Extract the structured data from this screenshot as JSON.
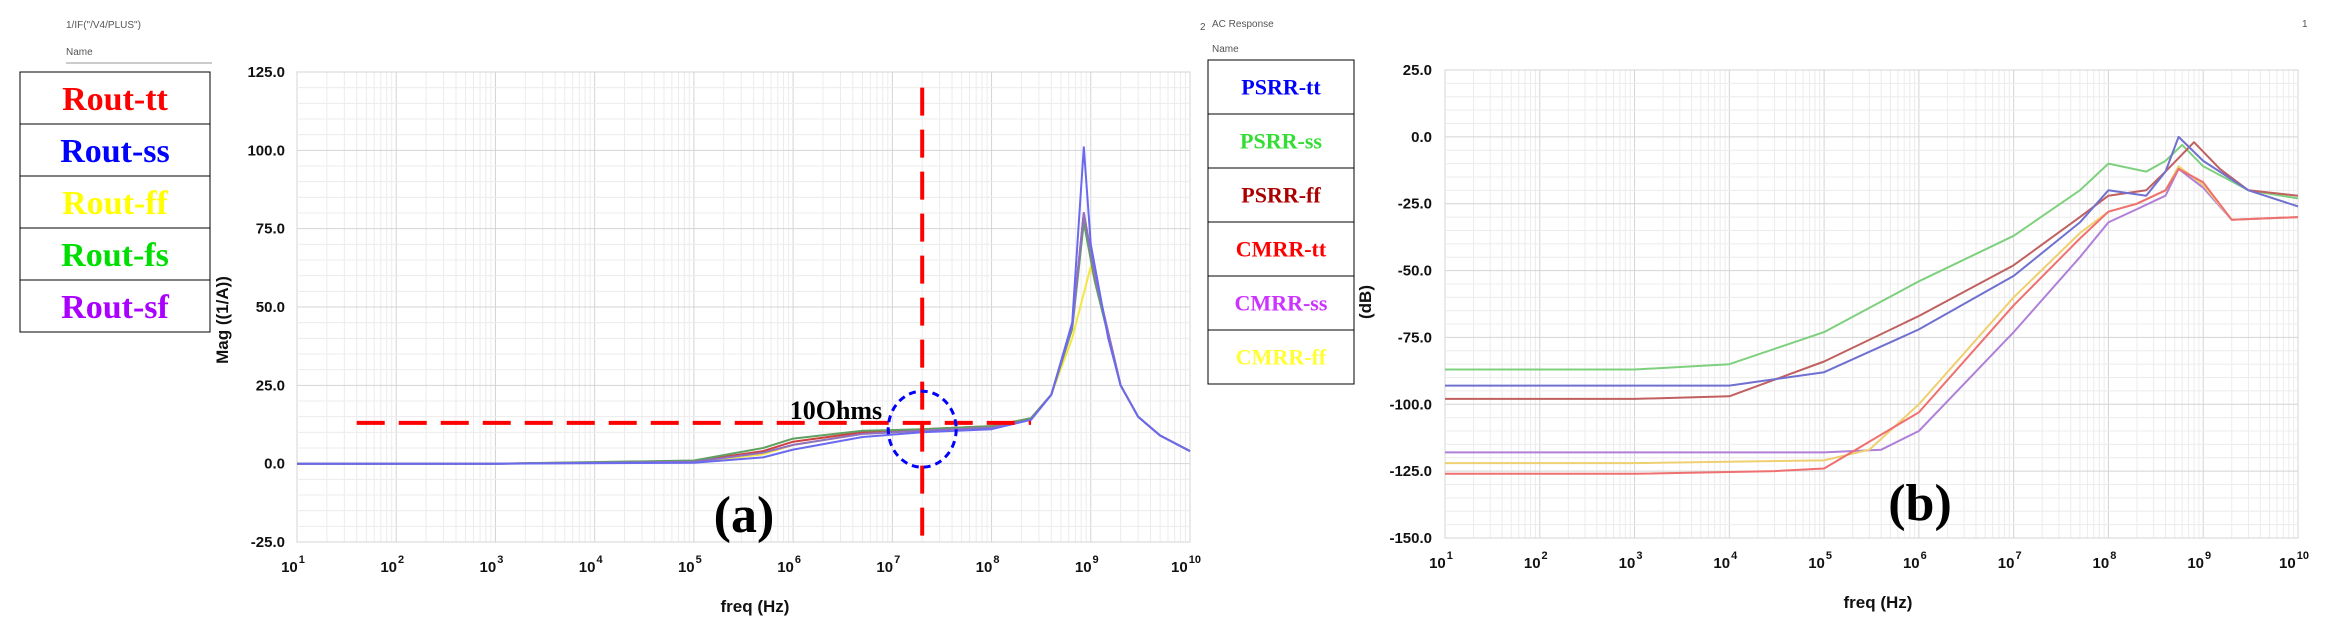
{
  "chart_data": [
    {
      "type": "line",
      "window_title": "1/IF(\"/V4/PLUS\")",
      "window_sub": "Name",
      "panel_label": "(a)",
      "xlabel": "freq (Hz)",
      "ylabel": "Mag ((1/A))",
      "x_scale": "log",
      "xlim": [
        10,
        10000000000
      ],
      "ylim": [
        -25,
        125
      ],
      "y_ticks": [
        "125.0",
        "100.0",
        "75.0",
        "50.0",
        "25.0",
        "0.0",
        "-25.0"
      ],
      "x_ticks": [
        {
          "base": "10",
          "exp": "1"
        },
        {
          "base": "10",
          "exp": "2"
        },
        {
          "base": "10",
          "exp": "3"
        },
        {
          "base": "10",
          "exp": "4"
        },
        {
          "base": "10",
          "exp": "5"
        },
        {
          "base": "10",
          "exp": "6"
        },
        {
          "base": "10",
          "exp": "7"
        },
        {
          "base": "10",
          "exp": "8"
        },
        {
          "base": "10",
          "exp": "9"
        },
        {
          "base": "10",
          "exp": "10"
        }
      ],
      "grid": true,
      "legend_position": "left-outside",
      "legend": [
        {
          "label": "Rout-tt",
          "color": "#ff0000"
        },
        {
          "label": "Rout-ss",
          "color": "#0000ff"
        },
        {
          "label": "Rout-ff",
          "color": "#ffff00"
        },
        {
          "label": "Rout-fs",
          "color": "#00dd00"
        },
        {
          "label": "Rout-sf",
          "color": "#aa00ff"
        }
      ],
      "annotation_text": "10Ohms",
      "annotation_color": "#ff0000",
      "circle_color": "#0000ff",
      "guide_h_y": 13,
      "guide_h_x": [
        40,
        250000000
      ],
      "guide_v_x": 20000000,
      "guide_v_y": [
        -25,
        120
      ],
      "circle_center": {
        "x": 20000000,
        "y": 11
      },
      "series": [
        {
          "name": "Rout-ff",
          "color": "#f5e642",
          "points": [
            [
              10,
              0
            ],
            [
              1000,
              0
            ],
            [
              100000,
              0.5
            ],
            [
              500000,
              3
            ],
            [
              1000000,
              6
            ],
            [
              5000000,
              9.5
            ],
            [
              20000000,
              10.5
            ],
            [
              100000000,
              11.5
            ],
            [
              250000000,
              14
            ],
            [
              400000000,
              22
            ],
            [
              650000000,
              40
            ],
            [
              1000000000,
              63
            ],
            [
              1300000000,
              50
            ],
            [
              2000000000,
              25
            ],
            [
              3000000000,
              15
            ],
            [
              5000000000,
              9
            ],
            [
              10000000000,
              4
            ]
          ]
        },
        {
          "name": "Rout-tt",
          "color": "#d04040",
          "points": [
            [
              10,
              0
            ],
            [
              1000,
              0
            ],
            [
              100000,
              0.8
            ],
            [
              500000,
              4
            ],
            [
              1000000,
              7
            ],
            [
              5000000,
              10
            ],
            [
              20000000,
              11
            ],
            [
              100000000,
              12
            ],
            [
              250000000,
              14.5
            ],
            [
              400000000,
              22
            ],
            [
              650000000,
              44
            ],
            [
              850000000,
              80
            ],
            [
              1100000000,
              60
            ],
            [
              2000000000,
              25
            ],
            [
              3000000000,
              15
            ],
            [
              5000000000,
              9
            ],
            [
              10000000000,
              4
            ]
          ]
        },
        {
          "name": "Rout-fs",
          "color": "#60a060",
          "points": [
            [
              10,
              0
            ],
            [
              1000,
              0
            ],
            [
              100000,
              1
            ],
            [
              500000,
              5
            ],
            [
              1000000,
              8
            ],
            [
              5000000,
              10.5
            ],
            [
              20000000,
              11
            ],
            [
              100000000,
              12
            ],
            [
              250000000,
              14.5
            ],
            [
              400000000,
              22
            ],
            [
              650000000,
              43
            ],
            [
              850000000,
              77
            ],
            [
              1100000000,
              58
            ],
            [
              2000000000,
              25
            ],
            [
              3000000000,
              15
            ],
            [
              5000000000,
              9
            ],
            [
              10000000000,
              4
            ]
          ]
        },
        {
          "name": "Rout-sf",
          "color": "#9070c0",
          "points": [
            [
              10,
              0
            ],
            [
              1000,
              0
            ],
            [
              100000,
              0.6
            ],
            [
              500000,
              3.5
            ],
            [
              1000000,
              6
            ],
            [
              5000000,
              9.5
            ],
            [
              20000000,
              10.5
            ],
            [
              100000000,
              11.5
            ],
            [
              250000000,
              14
            ],
            [
              400000000,
              22
            ],
            [
              650000000,
              44
            ],
            [
              850000000,
              80
            ],
            [
              1100000000,
              60
            ],
            [
              2000000000,
              25
            ],
            [
              3000000000,
              15
            ],
            [
              5000000000,
              9
            ],
            [
              10000000000,
              4
            ]
          ]
        },
        {
          "name": "Rout-ss",
          "color": "#6a6af0",
          "points": [
            [
              10,
              0
            ],
            [
              1000,
              0
            ],
            [
              100000,
              0.3
            ],
            [
              500000,
              2
            ],
            [
              1000000,
              4.5
            ],
            [
              5000000,
              8.5
            ],
            [
              20000000,
              10
            ],
            [
              100000000,
              11
            ],
            [
              250000000,
              14
            ],
            [
              400000000,
              22
            ],
            [
              650000000,
              45
            ],
            [
              850000000,
              101
            ],
            [
              1000000000,
              70
            ],
            [
              1500000000,
              40
            ],
            [
              2000000000,
              25
            ],
            [
              3000000000,
              15
            ],
            [
              5000000000,
              9
            ],
            [
              10000000000,
              4
            ]
          ]
        }
      ]
    },
    {
      "type": "line",
      "window_title": "AC Response",
      "window_sub": "Name",
      "window_right": "1",
      "window_index": "2",
      "panel_label": "(b)",
      "xlabel": "freq (Hz)",
      "ylabel": "(dB)",
      "x_scale": "log",
      "xlim": [
        10,
        10000000000
      ],
      "ylim": [
        -150,
        25
      ],
      "y_ticks": [
        "25.0",
        "0.0",
        "-25.0",
        "-50.0",
        "-75.0",
        "-100.0",
        "-125.0",
        "-150.0"
      ],
      "x_ticks": [
        {
          "base": "10",
          "exp": "1"
        },
        {
          "base": "10",
          "exp": "2"
        },
        {
          "base": "10",
          "exp": "3"
        },
        {
          "base": "10",
          "exp": "4"
        },
        {
          "base": "10",
          "exp": "5"
        },
        {
          "base": "10",
          "exp": "6"
        },
        {
          "base": "10",
          "exp": "7"
        },
        {
          "base": "10",
          "exp": "8"
        },
        {
          "base": "10",
          "exp": "9"
        },
        {
          "base": "10",
          "exp": "10"
        }
      ],
      "grid": true,
      "legend_position": "top-left",
      "legend": [
        {
          "label": "PSRR-tt",
          "color": "#0000ff"
        },
        {
          "label": "PSRR-ss",
          "color": "#33dd33"
        },
        {
          "label": "PSRR-ff",
          "color": "#aa0000"
        },
        {
          "label": "CMRR-tt",
          "color": "#ff0000"
        },
        {
          "label": "CMRR-ss",
          "color": "#cc33ff"
        },
        {
          "label": "CMRR-ff",
          "color": "#ffff33"
        }
      ],
      "series": [
        {
          "name": "PSRR-ss",
          "color": "#7ed07e",
          "points": [
            [
              10,
              -87
            ],
            [
              1000,
              -87
            ],
            [
              10000,
              -85
            ],
            [
              100000,
              -73
            ],
            [
              1000000,
              -54
            ],
            [
              10000000,
              -37
            ],
            [
              50000000,
              -20
            ],
            [
              100000000,
              -10
            ],
            [
              250000000,
              -13
            ],
            [
              400000000,
              -9
            ],
            [
              600000000,
              -3
            ],
            [
              1000000000,
              -11
            ],
            [
              3000000000,
              -20
            ],
            [
              10000000000,
              -23
            ]
          ]
        },
        {
          "name": "PSRR-ff",
          "color": "#c06060",
          "points": [
            [
              10,
              -98
            ],
            [
              1000,
              -98
            ],
            [
              10000,
              -97
            ],
            [
              100000,
              -84
            ],
            [
              1000000,
              -67
            ],
            [
              10000000,
              -48
            ],
            [
              50000000,
              -30
            ],
            [
              100000000,
              -22
            ],
            [
              250000000,
              -20
            ],
            [
              400000000,
              -13
            ],
            [
              800000000,
              -2
            ],
            [
              1500000000,
              -12
            ],
            [
              3000000000,
              -20
            ],
            [
              10000000000,
              -22
            ]
          ]
        },
        {
          "name": "PSRR-tt",
          "color": "#7070d0",
          "points": [
            [
              10,
              -93
            ],
            [
              1000,
              -93
            ],
            [
              10000,
              -93
            ],
            [
              100000,
              -88
            ],
            [
              1000000,
              -72
            ],
            [
              10000000,
              -52
            ],
            [
              50000000,
              -32
            ],
            [
              100000000,
              -20
            ],
            [
              250000000,
              -22
            ],
            [
              400000000,
              -13
            ],
            [
              550000000,
              0
            ],
            [
              1000000000,
              -9
            ],
            [
              3000000000,
              -20
            ],
            [
              10000000000,
              -26
            ]
          ]
        },
        {
          "name": "CMRR-ss",
          "color": "#b080d8",
          "points": [
            [
              10,
              -118
            ],
            [
              1000,
              -118
            ],
            [
              100000,
              -118
            ],
            [
              400000,
              -117
            ],
            [
              1000000,
              -110
            ],
            [
              10000000,
              -73
            ],
            [
              50000000,
              -45
            ],
            [
              100000000,
              -32
            ],
            [
              200000000,
              -27
            ],
            [
              400000000,
              -22
            ],
            [
              550000000,
              -12
            ],
            [
              1000000000,
              -19
            ],
            [
              2000000000,
              -31
            ],
            [
              10000000000,
              -30
            ]
          ]
        },
        {
          "name": "CMRR-ff",
          "color": "#eed070",
          "points": [
            [
              10,
              -122
            ],
            [
              1000,
              -122
            ],
            [
              100000,
              -121
            ],
            [
              300000,
              -117
            ],
            [
              1000000,
              -100
            ],
            [
              10000000,
              -60
            ],
            [
              50000000,
              -36
            ],
            [
              100000000,
              -28
            ],
            [
              200000000,
              -25
            ],
            [
              400000000,
              -20
            ],
            [
              550000000,
              -11
            ],
            [
              1000000000,
              -18
            ],
            [
              2000000000,
              -31
            ],
            [
              10000000000,
              -30
            ]
          ]
        },
        {
          "name": "CMRR-tt",
          "color": "#ee7070",
          "points": [
            [
              10,
              -126
            ],
            [
              1000,
              -126
            ],
            [
              30000,
              -125
            ],
            [
              100000,
              -124
            ],
            [
              1000000,
              -103
            ],
            [
              10000000,
              -63
            ],
            [
              50000000,
              -38
            ],
            [
              100000000,
              -28
            ],
            [
              200000000,
              -25
            ],
            [
              400000000,
              -20
            ],
            [
              550000000,
              -12
            ],
            [
              1000000000,
              -17
            ],
            [
              2000000000,
              -31
            ],
            [
              10000000000,
              -30
            ]
          ]
        }
      ]
    }
  ]
}
